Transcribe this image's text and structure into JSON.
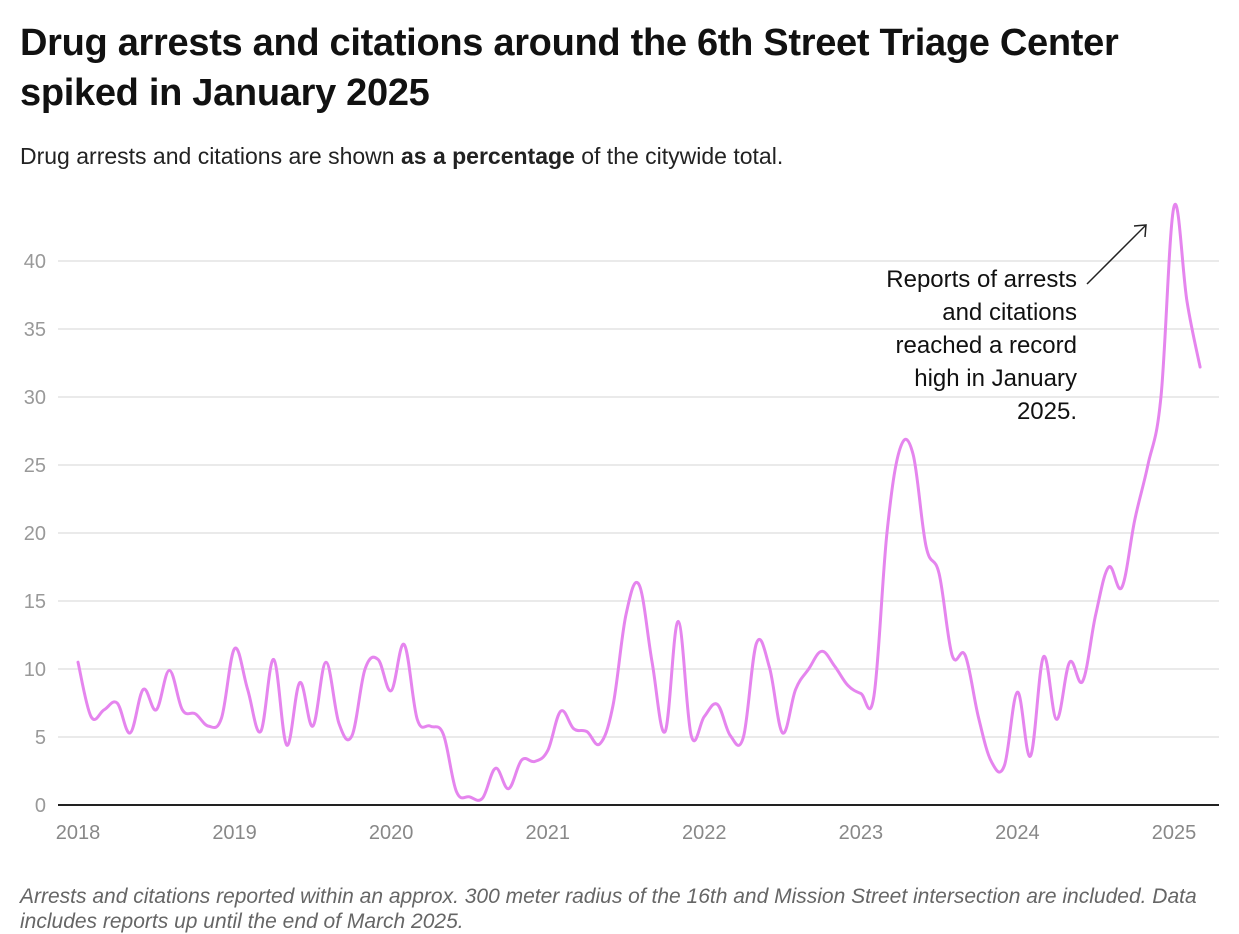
{
  "title": "Drug arrests and citations around the 6th Street Triage Center spiked in January 2025",
  "subtitle": {
    "before": "Drug arrests and citations are shown ",
    "bold": "as a percentage",
    "after": " of the citywide total."
  },
  "note": "Arrests and citations reported within an approx. 300 meter radius of the 16th and Mission Street intersection are included. Data includes reports up until the end of March 2025.",
  "colors": {
    "line": "#e585ee",
    "grid": "#e3e3e3",
    "axis": "#222222",
    "tick_text": "#999999"
  },
  "chart_data": {
    "type": "line",
    "title": "Drug arrests and citations around the 6th Street Triage Center spiked in January 2025",
    "xlabel": "",
    "ylabel": "",
    "x_ticks": [
      "2018",
      "2019",
      "2020",
      "2021",
      "2022",
      "2023",
      "2024",
      "2025"
    ],
    "y_ticks": [
      0,
      5,
      10,
      15,
      20,
      25,
      30,
      35,
      40
    ],
    "ylim": [
      0,
      45
    ],
    "xlim": [
      "2018-01",
      "2025-03"
    ],
    "grid": true,
    "legend": "none",
    "series": [
      {
        "x": [
          "2018-01",
          "2018-02",
          "2018-03",
          "2018-04",
          "2018-05",
          "2018-06",
          "2018-07",
          "2018-08",
          "2018-09",
          "2018-10",
          "2018-11",
          "2018-12",
          "2019-01",
          "2019-02",
          "2019-03",
          "2019-04",
          "2019-05",
          "2019-06",
          "2019-07",
          "2019-08",
          "2019-09",
          "2019-10",
          "2019-11",
          "2019-12",
          "2020-01",
          "2020-02",
          "2020-03",
          "2020-04",
          "2020-05",
          "2020-06",
          "2020-07",
          "2020-08",
          "2020-09",
          "2020-10",
          "2020-11",
          "2020-12",
          "2021-01",
          "2021-02",
          "2021-03",
          "2021-04",
          "2021-05",
          "2021-06",
          "2021-07",
          "2021-08",
          "2021-09",
          "2021-10",
          "2021-11",
          "2021-12",
          "2022-01",
          "2022-02",
          "2022-03",
          "2022-04",
          "2022-05",
          "2022-06",
          "2022-07",
          "2022-08",
          "2022-09",
          "2022-10",
          "2022-11",
          "2022-12",
          "2023-01",
          "2023-02",
          "2023-03",
          "2023-04",
          "2023-05",
          "2023-06",
          "2023-07",
          "2023-08",
          "2023-09",
          "2023-10",
          "2023-11",
          "2023-12",
          "2024-01",
          "2024-02",
          "2024-03",
          "2024-04",
          "2024-05",
          "2024-06",
          "2024-07",
          "2024-08",
          "2024-09",
          "2024-10",
          "2024-11",
          "2024-12",
          "2025-01",
          "2025-02",
          "2025-03"
        ],
        "values": [
          10.5,
          6.5,
          7.0,
          7.5,
          5.3,
          8.5,
          7.0,
          9.9,
          7.0,
          6.7,
          5.8,
          6.4,
          11.5,
          8.5,
          5.4,
          10.7,
          4.4,
          9.0,
          5.8,
          10.5,
          6.0,
          5.1,
          10.0,
          10.7,
          8.4,
          11.8,
          6.3,
          5.8,
          5.2,
          1.0,
          0.6,
          0.5,
          2.7,
          1.2,
          3.3,
          3.2,
          4.0,
          6.9,
          5.6,
          5.4,
          4.5,
          7.3,
          14.0,
          16.2,
          10.5,
          5.4,
          13.5,
          5.1,
          6.5,
          7.4,
          5.1,
          5.0,
          11.9,
          10.1,
          5.3,
          8.5,
          10.0,
          11.3,
          10.2,
          8.8,
          8.2,
          8.0,
          20.0,
          26.2,
          25.8,
          19.0,
          17.0,
          11.0,
          11.0,
          6.5,
          3.2,
          2.9,
          8.3,
          3.6,
          10.9,
          6.3,
          10.5,
          9.1,
          14.0,
          17.5,
          16.0,
          21.0,
          25.0,
          30.0,
          44.0,
          37.0,
          32.2
        ]
      }
    ],
    "annotation": {
      "lines": [
        "Reports of arrests",
        "and citations",
        "reached a record",
        "high in January",
        "2025."
      ],
      "points_to": "2025-01"
    }
  }
}
